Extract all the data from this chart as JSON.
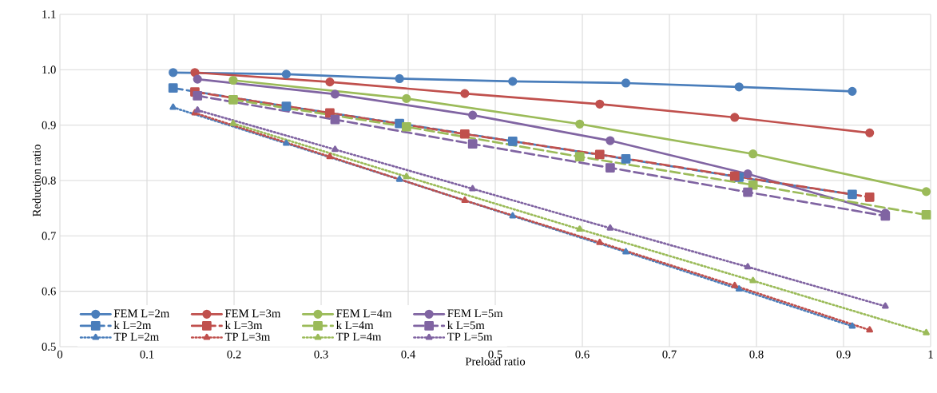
{
  "chart_data": {
    "type": "line",
    "xlabel": "Preload ratio",
    "ylabel": "Reduction ratio",
    "xlim": [
      0,
      1
    ],
    "ylim": [
      0.5,
      1.1
    ],
    "xticks": [
      0,
      0.1,
      0.2,
      0.3,
      0.4,
      0.5,
      0.6,
      0.7,
      0.8,
      0.9,
      1
    ],
    "yticks": [
      0.5,
      0.6,
      0.7,
      0.8,
      0.9,
      {
        "value": 1,
        "label": "1.0"
      },
      1.1
    ],
    "grid": true,
    "legend": "bottom left",
    "series": [
      {
        "name": "FEM L=2m",
        "color": "#4a7ebb",
        "marker": "circle",
        "line_style": "solid",
        "x": [
          0.13,
          0.26,
          0.39,
          0.52,
          0.65,
          0.78,
          0.91
        ],
        "values": [
          0.995,
          0.992,
          0.984,
          0.979,
          0.976,
          0.969,
          0.961
        ]
      },
      {
        "name": "FEM L=3m",
        "color": "#c0504d",
        "marker": "circle",
        "line_style": "solid",
        "x": [
          0.155,
          0.31,
          0.465,
          0.62,
          0.775,
          0.93
        ],
        "values": [
          0.995,
          0.978,
          0.957,
          0.938,
          0.914,
          0.886
        ]
      },
      {
        "name": "FEM L=4m",
        "color": "#9bbb59",
        "marker": "circle",
        "line_style": "solid",
        "x": [
          0.199,
          0.398,
          0.597,
          0.796,
          0.995
        ],
        "values": [
          0.981,
          0.948,
          0.902,
          0.848,
          0.78
        ]
      },
      {
        "name": "FEM L=5m",
        "color": "#8064a2",
        "marker": "circle",
        "line_style": "solid",
        "x": [
          0.158,
          0.316,
          0.474,
          0.632,
          0.79,
          0.948
        ],
        "values": [
          0.983,
          0.956,
          0.918,
          0.872,
          0.812,
          0.741
        ]
      },
      {
        "name": "k L=2m",
        "color": "#4a7ebb",
        "marker": "square",
        "line_style": "dashed",
        "x": [
          0.13,
          0.26,
          0.39,
          0.52,
          0.65,
          0.78,
          0.91
        ],
        "values": [
          0.967,
          0.934,
          0.903,
          0.871,
          0.839,
          0.806,
          0.775
        ]
      },
      {
        "name": "k L=3m",
        "color": "#c0504d",
        "marker": "square",
        "line_style": "dashed",
        "x": [
          0.155,
          0.31,
          0.465,
          0.62,
          0.775,
          0.93
        ],
        "values": [
          0.96,
          0.922,
          0.884,
          0.847,
          0.808,
          0.77
        ]
      },
      {
        "name": "k L=4m",
        "color": "#9bbb59",
        "marker": "square",
        "line_style": "dashed",
        "x": [
          0.199,
          0.398,
          0.597,
          0.796,
          0.995
        ],
        "values": [
          0.946,
          0.897,
          0.843,
          0.792,
          0.738
        ]
      },
      {
        "name": "k L=5m",
        "color": "#8064a2",
        "marker": "square",
        "line_style": "dashed",
        "x": [
          0.158,
          0.316,
          0.474,
          0.632,
          0.79,
          0.948
        ],
        "values": [
          0.953,
          0.91,
          0.866,
          0.823,
          0.779,
          0.736
        ]
      },
      {
        "name": "TP L=2m",
        "color": "#4a7ebb",
        "marker": "triangle",
        "line_style": "dotted",
        "x": [
          0.13,
          0.26,
          0.39,
          0.52,
          0.65,
          0.78,
          0.91
        ],
        "values": [
          0.932,
          0.867,
          0.802,
          0.736,
          0.671,
          0.604,
          0.537
        ]
      },
      {
        "name": "TP L=3m",
        "color": "#c0504d",
        "marker": "triangle",
        "line_style": "dotted",
        "x": [
          0.155,
          0.31,
          0.465,
          0.62,
          0.775,
          0.93
        ],
        "values": [
          0.922,
          0.843,
          0.764,
          0.688,
          0.61,
          0.53
        ]
      },
      {
        "name": "TP L=4m",
        "color": "#9bbb59",
        "marker": "triangle",
        "line_style": "dotted",
        "x": [
          0.199,
          0.398,
          0.597,
          0.796,
          0.995
        ],
        "values": [
          0.903,
          0.807,
          0.712,
          0.619,
          0.525
        ]
      },
      {
        "name": "TP L=5m",
        "color": "#8064a2",
        "marker": "triangle",
        "line_style": "dotted",
        "x": [
          0.158,
          0.316,
          0.474,
          0.632,
          0.79,
          0.948
        ],
        "values": [
          0.927,
          0.856,
          0.785,
          0.714,
          0.644,
          0.573
        ]
      }
    ]
  }
}
